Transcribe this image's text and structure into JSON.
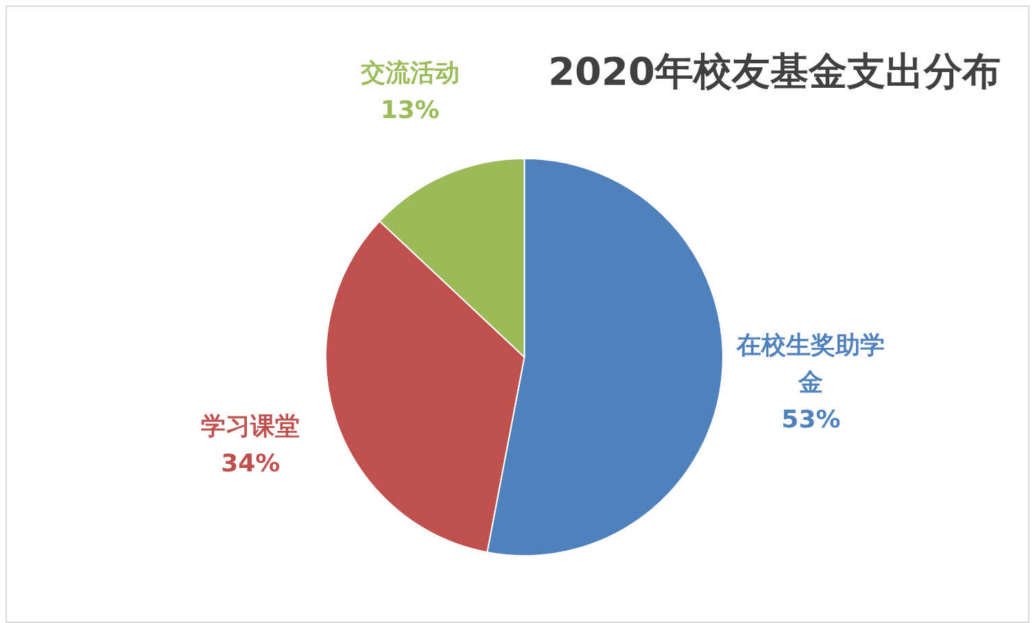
{
  "chart_data": {
    "type": "pie",
    "title": "2020年校友基金支出分布",
    "categories": [
      "在校生奖助学金",
      "学习课堂",
      "交流活动"
    ],
    "values": [
      53,
      34,
      13
    ],
    "colors": [
      "#4f81bd",
      "#c0504d",
      "#9bbb59"
    ],
    "value_labels": [
      "53%",
      "34%",
      "13%"
    ],
    "legend": false
  }
}
